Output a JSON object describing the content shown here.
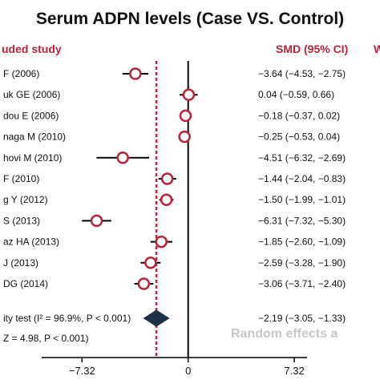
{
  "title": "Serum ADPN levels (Case VS. Control)",
  "colors": {
    "header": "#b8243c",
    "marker": "#b8243c",
    "line": "#000000",
    "diamond": "#1c3048",
    "ref": "#b8243c",
    "watermark": "#c8c8c8"
  },
  "headers": {
    "study": "uded study",
    "smd": "SMD (95% CI)",
    "edge": "W"
  },
  "summary": {
    "heterogeneity": "ity test (I² = 96.9%, P < 0.001)",
    "overall_test": "Z = 4.98, P < 0.001)",
    "smd": "−2.19 (−3.05, −1.33)",
    "watermark": "Random effects a"
  },
  "chart_data": {
    "type": "forest",
    "x_ticks": [
      "−7.32",
      "0",
      "7.32"
    ],
    "x_tick_values": [
      -7.32,
      0,
      7.32
    ],
    "xlim": [
      -10.1,
      8.2
    ],
    "pooled_reference": -2.19,
    "studies": [
      {
        "label": "F (2006)",
        "smd": -3.64,
        "lo": -4.53,
        "hi": -2.75,
        "ci_text": "−3.64 (−4.53, −2.75)"
      },
      {
        "label": "uk GE (2006)",
        "smd": 0.04,
        "lo": -0.59,
        "hi": 0.66,
        "ci_text": "0.04 (−0.59, 0.66)"
      },
      {
        "label": "dou E (2006)",
        "smd": -0.18,
        "lo": -0.37,
        "hi": 0.02,
        "ci_text": "−0.18 (−0.37, 0.02)"
      },
      {
        "label": "naga M (2010)",
        "smd": -0.25,
        "lo": -0.53,
        "hi": 0.04,
        "ci_text": "−0.25 (−0.53, 0.04)"
      },
      {
        "label": "hovi M (2010)",
        "smd": -4.51,
        "lo": -6.32,
        "hi": -2.69,
        "ci_text": "−4.51 (−6.32, −2.69)"
      },
      {
        "label": "F (2010)",
        "smd": -1.44,
        "lo": -2.04,
        "hi": -0.83,
        "ci_text": "−1.44 (−2.04, −0.83)"
      },
      {
        "label": "g Y (2012)",
        "smd": -1.5,
        "lo": -1.99,
        "hi": -1.01,
        "ci_text": "−1.50 (−1.99, −1.01)"
      },
      {
        "label": "S (2013)",
        "smd": -6.31,
        "lo": -7.32,
        "hi": -5.3,
        "ci_text": "−6.31 (−7.32, −5.30)"
      },
      {
        "label": "az HA (2013)",
        "smd": -1.85,
        "lo": -2.6,
        "hi": -1.09,
        "ci_text": "−1.85 (−2.60, −1.09)"
      },
      {
        "label": "J (2013)",
        "smd": -2.59,
        "lo": -3.28,
        "hi": -1.9,
        "ci_text": "−2.59 (−3.28, −1.90)"
      },
      {
        "label": "DG (2014)",
        "smd": -3.06,
        "lo": -3.71,
        "hi": -2.4,
        "ci_text": "−3.06 (−3.71, −2.40)"
      }
    ],
    "pooled": {
      "smd": -2.19,
      "lo": -3.05,
      "hi": -1.33
    }
  }
}
